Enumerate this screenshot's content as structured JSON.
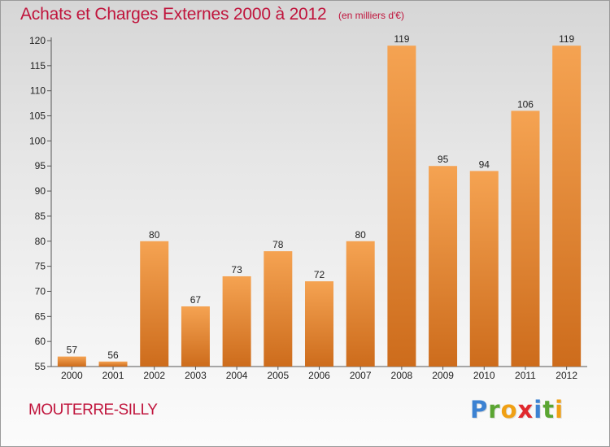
{
  "header": {
    "title": "Achats et Charges Externes 2000 à 2012",
    "unit": "(en milliers d'€)"
  },
  "footer": {
    "city": "MOUTERRE-SILLY",
    "logo": [
      "P",
      "r",
      "o",
      "x",
      "i",
      "t",
      "i"
    ],
    "logo_colors": [
      "#3c82d2",
      "#5aa532",
      "#f0a014",
      "#e0282d",
      "#3c82d2",
      "#5aa532",
      "#f0a014"
    ]
  },
  "colors": {
    "bar_light": "#f5a352",
    "bar_dark": "#cd6c1c",
    "title": "#c0143c"
  },
  "chart_data": {
    "type": "bar",
    "title": "Achats et Charges Externes 2000 à 2012",
    "subtitle": "(en milliers d'€)",
    "xlabel": "",
    "ylabel": "",
    "categories": [
      "2000",
      "2001",
      "2002",
      "2003",
      "2004",
      "2005",
      "2006",
      "2007",
      "2008",
      "2009",
      "2010",
      "2011",
      "2012"
    ],
    "values": [
      57,
      56,
      80,
      67,
      73,
      78,
      72,
      80,
      119,
      95,
      94,
      106,
      119
    ],
    "ylim": [
      55,
      120
    ],
    "yticks": [
      55,
      60,
      65,
      70,
      75,
      80,
      85,
      90,
      95,
      100,
      105,
      110,
      115,
      120
    ],
    "grid": false,
    "legend": "none"
  }
}
